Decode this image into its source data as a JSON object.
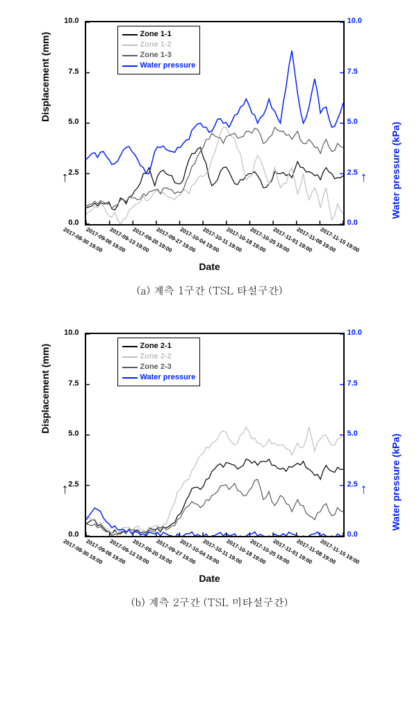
{
  "chart_a": {
    "type": "line",
    "title": "",
    "x_label": "Date",
    "y_left_label": "Displacement (mm)",
    "y_right_label": "Water pressure (kPa)",
    "y_left": {
      "min": 0.0,
      "max": 10.0,
      "ticks": [
        0.0,
        2.5,
        5.0,
        7.5,
        10.0
      ],
      "color": "#000000"
    },
    "y_right": {
      "min": 0.0,
      "max": 10.0,
      "ticks": [
        0.0,
        2.5,
        5.0,
        7.5,
        10.0
      ],
      "color": "#0020ff"
    },
    "x_ticks": [
      "2017-08-30 19:00",
      "2017-09-06 19:00",
      "2017-09-13 19:00",
      "2017-09-20 19:00",
      "2017-09-27 19:00",
      "2017-10-04 19:00",
      "2017-10-11 19:00",
      "2017-10-18 19:00",
      "2017-10-25 19:00",
      "2017-11-01 19:00",
      "2017-11-08 19:00",
      "2017-11-15 19:00"
    ],
    "series": [
      {
        "name": "Zone 1-1",
        "color": "#000000",
        "width": 1.2,
        "data": [
          0.8,
          0.9,
          0.9,
          1.0,
          1.1,
          0.7,
          1.3,
          1.0,
          1.4,
          1.8,
          2.5,
          2.8,
          1.9,
          2.6,
          2.5,
          2.4,
          2.0,
          2.2,
          3.2,
          3.5,
          3.8,
          3.0,
          1.9,
          2.2,
          2.8,
          2.6,
          2.0,
          2.2,
          2.4,
          2.5,
          2.4,
          1.8,
          2.0,
          2.6,
          2.5,
          2.4,
          2.3,
          3.1,
          2.8,
          2.6,
          2.4,
          2.2,
          2.8,
          2.5,
          2.3,
          2.4
        ]
      },
      {
        "name": "Zone 1-2",
        "color": "#bfbfbf",
        "width": 1.2,
        "data": [
          0.5,
          0.7,
          0.8,
          0.9,
          0.4,
          0.6,
          0.0,
          0.3,
          0.8,
          1.0,
          1.4,
          1.2,
          1.6,
          1.5,
          1.4,
          1.3,
          1.4,
          1.7,
          1.5,
          2.0,
          2.4,
          2.5,
          3.2,
          4.0,
          4.8,
          4.5,
          4.2,
          3.5,
          2.2,
          2.4,
          3.4,
          2.8,
          2.0,
          2.8,
          1.8,
          2.0,
          2.8,
          1.5,
          2.5,
          1.2,
          1.8,
          0.8,
          1.8,
          0.2,
          1.0,
          0.5
        ]
      },
      {
        "name": "Zone 1-3",
        "color": "#595959",
        "width": 1.2,
        "data": [
          0.9,
          1.0,
          1.0,
          1.1,
          1.0,
          0.9,
          1.2,
          1.1,
          1.3,
          1.2,
          1.5,
          1.6,
          1.7,
          1.5,
          1.8,
          1.7,
          1.6,
          1.7,
          2.4,
          3.0,
          3.6,
          4.2,
          4.5,
          4.3,
          4.0,
          4.4,
          4.5,
          4.3,
          4.6,
          4.5,
          4.7,
          4.0,
          4.3,
          4.8,
          4.6,
          4.4,
          4.2,
          4.6,
          4.0,
          4.2,
          3.8,
          3.5,
          4.2,
          3.6,
          4.0,
          3.8
        ]
      },
      {
        "name": "Water pressure",
        "color": "#0020ff",
        "width": 1.5,
        "axis": "right",
        "data": [
          3.2,
          3.5,
          3.3,
          3.6,
          3.2,
          3.0,
          3.4,
          3.8,
          3.6,
          3.2,
          2.8,
          2.5,
          3.6,
          3.8,
          3.7,
          3.6,
          3.8,
          4.0,
          4.2,
          4.8,
          5.0,
          4.8,
          4.6,
          5.2,
          5.0,
          4.8,
          5.4,
          5.8,
          6.2,
          5.5,
          5.0,
          5.4,
          6.2,
          5.6,
          5.0,
          6.8,
          8.6,
          6.5,
          5.0,
          5.8,
          7.2,
          5.5,
          5.8,
          4.8,
          5.2,
          6.0
        ]
      }
    ],
    "legend_items": [
      {
        "label": "Zone 1-1",
        "color": "#000000"
      },
      {
        "label": "Zone 1-2",
        "color": "#bfbfbf"
      },
      {
        "label": "Zone 1-3",
        "color": "#595959"
      },
      {
        "label": "Water pressure",
        "color": "#0020ff"
      }
    ],
    "caption": "(a) 계측 1구간 (TSL 타설구간)",
    "background_color": "#ffffff",
    "border_color": "#000000"
  },
  "chart_b": {
    "type": "line",
    "title": "",
    "x_label": "Date",
    "y_left_label": "Displacement (mm)",
    "y_right_label": "Water pressure (kPa)",
    "y_left": {
      "min": 0.0,
      "max": 10.0,
      "ticks": [
        0.0,
        2.5,
        5.0,
        7.5,
        10.0
      ],
      "color": "#000000"
    },
    "y_right": {
      "min": 0.0,
      "max": 10.0,
      "ticks": [
        0.0,
        2.5,
        5.0,
        7.5,
        10.0
      ],
      "color": "#0020ff"
    },
    "x_ticks": [
      "2017-08-30 19:00",
      "2017-09-06 19:00",
      "2017-09-13 19:00",
      "2017-09-20 19:00",
      "2017-09-27 19:00",
      "2017-10-04 19:00",
      "2017-10-11 19:00",
      "2017-10-18 19:00",
      "2017-10-25 19:00",
      "2017-11-01 19:00",
      "2017-11-08 19:00",
      "2017-11-15 19:00"
    ],
    "series": [
      {
        "name": "Zone 2-1",
        "color": "#000000",
        "width": 1.2,
        "data": [
          0.6,
          0.8,
          0.5,
          0.4,
          0.2,
          0.3,
          0.1,
          0.2,
          0.1,
          0.3,
          0.2,
          0.4,
          0.3,
          0.2,
          0.4,
          0.6,
          1.0,
          1.4,
          2.0,
          2.4,
          2.3,
          2.8,
          3.2,
          3.5,
          3.4,
          3.6,
          3.5,
          3.4,
          3.8,
          3.6,
          3.5,
          3.7,
          3.8,
          3.5,
          3.3,
          3.2,
          3.4,
          3.6,
          3.7,
          3.3,
          3.0,
          2.8,
          3.5,
          3.2,
          3.4,
          3.3
        ]
      },
      {
        "name": "Zone 2-2",
        "color": "#bfbfbf",
        "width": 1.2,
        "data": [
          1.0,
          0.8,
          0.6,
          0.5,
          0.3,
          0.2,
          0.3,
          0.4,
          0.2,
          0.5,
          0.3,
          0.4,
          0.5,
          0.3,
          0.6,
          1.4,
          2.2,
          2.6,
          2.8,
          3.4,
          4.0,
          4.4,
          4.6,
          4.8,
          5.2,
          4.8,
          4.5,
          5.0,
          5.4,
          4.8,
          4.6,
          4.4,
          4.8,
          4.6,
          4.5,
          4.3,
          4.0,
          4.6,
          4.4,
          5.4,
          4.2,
          4.8,
          5.0,
          4.5,
          4.8,
          5.0
        ]
      },
      {
        "name": "Zone 2-3",
        "color": "#595959",
        "width": 1.2,
        "data": [
          0.6,
          0.5,
          0.4,
          0.3,
          0.2,
          0.1,
          0.2,
          0.1,
          0.3,
          0.2,
          0.1,
          0.3,
          0.2,
          0.4,
          0.3,
          0.5,
          0.8,
          1.2,
          1.5,
          1.6,
          1.4,
          1.8,
          2.0,
          2.2,
          2.5,
          2.3,
          2.6,
          2.2,
          2.0,
          2.4,
          2.8,
          1.8,
          2.2,
          1.5,
          2.0,
          1.6,
          1.2,
          1.8,
          1.5,
          1.0,
          0.8,
          1.2,
          1.6,
          1.0,
          1.4,
          1.2
        ]
      },
      {
        "name": "Water pressure",
        "color": "#0020ff",
        "width": 1.5,
        "axis": "right",
        "data": [
          0.8,
          1.2,
          1.3,
          0.9,
          0.6,
          0.5,
          0.3,
          0.2,
          0.1,
          0.2,
          0.1,
          0.2,
          0.1,
          0.0,
          0.1,
          0.0,
          0.1,
          0.0,
          0.1,
          0.0,
          0.0,
          0.1,
          0.0,
          0.1,
          0.0,
          0.0,
          0.1,
          0.0,
          0.0,
          0.1,
          0.0,
          0.0,
          0.0,
          0.1,
          0.0,
          0.0,
          0.1,
          0.0,
          0.0,
          0.0,
          0.1,
          0.0,
          0.0,
          0.0,
          0.1,
          0.0
        ]
      }
    ],
    "legend_items": [
      {
        "label": "Zone 2-1",
        "color": "#000000"
      },
      {
        "label": "Zone 2-2",
        "color": "#bfbfbf"
      },
      {
        "label": "Zone 2-3",
        "color": "#595959"
      },
      {
        "label": "Water pressure",
        "color": "#0020ff"
      }
    ],
    "caption": "(b) 계측 2구간 (TSL 미타설구간)",
    "background_color": "#ffffff",
    "border_color": "#000000"
  }
}
